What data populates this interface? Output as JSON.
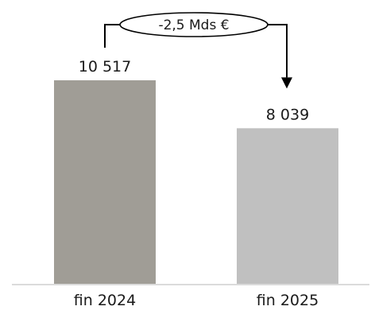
{
  "chart_data": {
    "type": "bar",
    "categories": [
      "fin 2024",
      "fin 2025"
    ],
    "values": [
      10517,
      8039
    ],
    "value_labels": [
      "10 517",
      "8 039"
    ],
    "colors": [
      "#a09d96",
      "#c0c0c0"
    ],
    "ylim": [
      0,
      12000
    ],
    "grid": false,
    "annotation": {
      "text": "-2,5 Mds €",
      "from_category": "fin 2024",
      "to_category": "fin 2025"
    }
  }
}
